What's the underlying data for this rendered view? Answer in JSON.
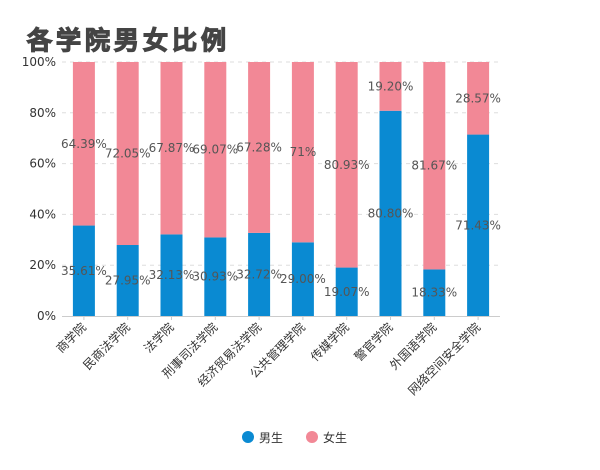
{
  "chart_data": {
    "type": "bar",
    "stacked": true,
    "title": "各学院男女比例",
    "categories": [
      "商学院",
      "民商法学院",
      "法学院",
      "刑事司法学院",
      "经济贸易法学院",
      "公共管理学院",
      "传媒学院",
      "警官学院",
      "外国语学院",
      "网络空间安全学院"
    ],
    "series": [
      {
        "name": "男生",
        "color": "#0a8ad2",
        "values": [
          35.61,
          27.95,
          32.13,
          30.93,
          32.72,
          29.0,
          19.07,
          80.8,
          18.33,
          71.43
        ],
        "labels": [
          "35.61%",
          "27.95%",
          "32.13%",
          "30.93%",
          "32.72%",
          "29.00%",
          "19.07%",
          "80.80%",
          "18.33%",
          "71.43%"
        ]
      },
      {
        "name": "女生",
        "color": "#f28896",
        "values": [
          64.39,
          72.05,
          67.87,
          69.07,
          67.28,
          71,
          80.93,
          19.2,
          81.67,
          28.57
        ],
        "labels": [
          "64.39%",
          "72.05%",
          "67.87%",
          "69.07%",
          "67.28%",
          "71%",
          "80.93%",
          "19.20%",
          "81.67%",
          "28.57%"
        ]
      }
    ],
    "yticks": [
      "0%",
      "20%",
      "40%",
      "60%",
      "80%",
      "100%"
    ],
    "ylim": [
      0,
      100
    ],
    "grid": true,
    "legend": "bottom-center"
  }
}
